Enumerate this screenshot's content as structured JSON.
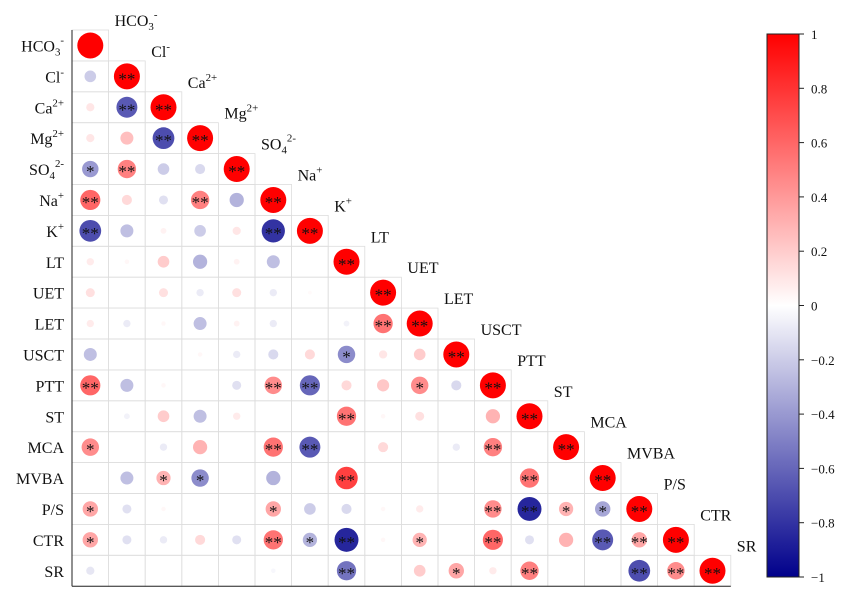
{
  "chart_data": {
    "type": "heatmap",
    "subtype": "lower-triangle correlation matrix",
    "title": "",
    "variables": [
      {
        "id": "HCO3",
        "base": "HCO",
        "sub": "3",
        "sup": "-"
      },
      {
        "id": "Cl",
        "base": "Cl",
        "sub": "",
        "sup": "-"
      },
      {
        "id": "Ca",
        "base": "Ca",
        "sub": "",
        "sup": "2+"
      },
      {
        "id": "Mg",
        "base": "Mg",
        "sub": "",
        "sup": "2+"
      },
      {
        "id": "SO4",
        "base": "SO",
        "sub": "4",
        "sup": "2-"
      },
      {
        "id": "Na",
        "base": "Na",
        "sub": "",
        "sup": "+"
      },
      {
        "id": "K",
        "base": "K",
        "sub": "",
        "sup": "+"
      },
      {
        "id": "LT",
        "base": "LT",
        "sub": "",
        "sup": ""
      },
      {
        "id": "UET",
        "base": "UET",
        "sub": "",
        "sup": ""
      },
      {
        "id": "LET",
        "base": "LET",
        "sub": "",
        "sup": ""
      },
      {
        "id": "USCT",
        "base": "USCT",
        "sub": "",
        "sup": ""
      },
      {
        "id": "PTT",
        "base": "PTT",
        "sub": "",
        "sup": ""
      },
      {
        "id": "ST",
        "base": "ST",
        "sub": "",
        "sup": ""
      },
      {
        "id": "MCA",
        "base": "MCA",
        "sub": "",
        "sup": ""
      },
      {
        "id": "MVBA",
        "base": "MVBA",
        "sub": "",
        "sup": ""
      },
      {
        "id": "P/S",
        "base": "P/S",
        "sub": "",
        "sup": ""
      },
      {
        "id": "CTR",
        "base": "CTR",
        "sub": "",
        "sup": ""
      },
      {
        "id": "SR",
        "base": "SR",
        "sub": "",
        "sup": ""
      }
    ],
    "matrix": [
      [
        1
      ],
      [
        -0.2,
        1
      ],
      [
        0.1,
        -0.65,
        1
      ],
      [
        0.1,
        0.25,
        -0.7,
        1
      ],
      [
        -0.4,
        0.5,
        -0.2,
        -0.15,
        1
      ],
      [
        0.6,
        0.15,
        -0.12,
        0.5,
        -0.3,
        1
      ],
      [
        -0.7,
        -0.25,
        0.05,
        -0.2,
        0.1,
        -0.8,
        1
      ],
      [
        0.08,
        0.03,
        0.2,
        -0.3,
        0.05,
        -0.25,
        0.0,
        1
      ],
      [
        0.12,
        0.0,
        0.12,
        -0.08,
        0.12,
        -0.08,
        0.02,
        0.0,
        1
      ],
      [
        0.08,
        -0.08,
        0.03,
        -0.25,
        0.05,
        -0.08,
        0.0,
        -0.05,
        0.55,
        1
      ],
      [
        -0.25,
        0.0,
        0.0,
        0.03,
        -0.08,
        -0.15,
        0.15,
        -0.45,
        0.1,
        0.2,
        1
      ],
      [
        0.6,
        -0.25,
        0.03,
        0.0,
        -0.12,
        0.45,
        -0.6,
        0.15,
        0.22,
        0.45,
        -0.15,
        1
      ],
      [
        0.0,
        -0.05,
        0.2,
        -0.25,
        0.08,
        0.0,
        0.0,
        0.55,
        0.03,
        0.12,
        0.0,
        0.3,
        1
      ],
      [
        0.45,
        0.0,
        -0.08,
        0.3,
        0.0,
        0.55,
        -0.65,
        0.0,
        0.15,
        0.0,
        -0.08,
        0.5,
        0.0,
        1
      ],
      [
        0.0,
        -0.25,
        0.3,
        -0.45,
        0.0,
        -0.3,
        0.0,
        0.75,
        0.0,
        0.0,
        0.0,
        0.0,
        0.55,
        0.0,
        1
      ],
      [
        0.35,
        -0.12,
        0.03,
        0.0,
        0.0,
        0.35,
        -0.2,
        -0.15,
        0.03,
        0.08,
        0.0,
        0.45,
        -0.85,
        0.3,
        -0.35,
        1
      ],
      [
        0.35,
        -0.12,
        -0.08,
        0.15,
        -0.12,
        0.55,
        -0.3,
        -0.85,
        0.03,
        0.3,
        0.0,
        0.6,
        -0.12,
        0.3,
        -0.65,
        0.35,
        1
      ],
      [
        -0.1,
        0.0,
        0.0,
        0.0,
        0.0,
        -0.03,
        0.0,
        -0.55,
        0.0,
        0.2,
        0.35,
        0.08,
        0.5,
        0.0,
        0.0,
        -0.7,
        0.45,
        1
      ]
    ],
    "significance": [
      [
        ""
      ],
      [
        "",
        "**"
      ],
      [
        "",
        "**",
        "**"
      ],
      [
        "",
        "",
        "**",
        "**"
      ],
      [
        "*",
        "**",
        "",
        "",
        "**"
      ],
      [
        "**",
        "",
        "",
        "**",
        "",
        "**"
      ],
      [
        "**",
        "",
        "",
        "",
        "",
        "**",
        "**"
      ],
      [
        "",
        "",
        "",
        "",
        "",
        "",
        "",
        "**"
      ],
      [
        "",
        "",
        "",
        "",
        "",
        "",
        "",
        "",
        "**"
      ],
      [
        "",
        "",
        "",
        "",
        "",
        "",
        "",
        "",
        "**",
        "**"
      ],
      [
        "",
        "",
        "",
        "",
        "",
        "",
        "",
        "*",
        "",
        "",
        "**"
      ],
      [
        "**",
        "",
        "",
        "",
        "",
        "**",
        "**",
        "",
        "",
        "*",
        "",
        "**"
      ],
      [
        "",
        "",
        "",
        "",
        "",
        "",
        "",
        "**",
        "",
        "",
        "",
        "",
        "**"
      ],
      [
        "*",
        "",
        "",
        "",
        "",
        "**",
        "**",
        "",
        "",
        "",
        "",
        "**",
        "",
        "**"
      ],
      [
        "",
        "",
        "*",
        "*",
        "",
        "",
        "",
        "**",
        "",
        "",
        "",
        "",
        "**",
        "",
        "**"
      ],
      [
        "*",
        "",
        "",
        "",
        "",
        "*",
        "",
        "",
        "",
        "",
        "",
        "**",
        "**",
        "*",
        "*",
        "**"
      ],
      [
        "*",
        "",
        "",
        "",
        "",
        "**",
        "*",
        "**",
        "",
        "*",
        "",
        "**",
        "",
        "",
        "**",
        "**",
        "**"
      ],
      [
        "",
        "",
        "",
        "",
        "",
        "",
        "",
        "**",
        "",
        "",
        "*",
        "",
        "**",
        "",
        "",
        "**",
        "**",
        "**"
      ]
    ],
    "colorbar": {
      "range": [
        -1,
        1
      ],
      "ticks": [
        "1",
        "0.8",
        "0.6",
        "0.4",
        "0.2",
        "0",
        "−0.2",
        "−0.4",
        "−0.6",
        "−0.8",
        "−1"
      ],
      "colors": {
        "positive": "#ff0000",
        "zero": "#ffffff",
        "negative": "#00008b"
      }
    },
    "legend_position": "right",
    "grid": true
  }
}
